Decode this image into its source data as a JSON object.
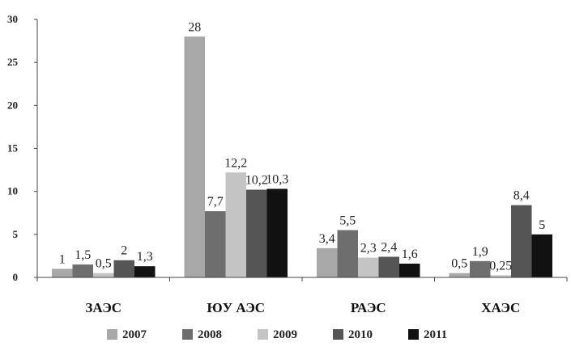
{
  "chart_data": {
    "type": "bar",
    "categories": [
      "ЗАЭС",
      "ЮУ АЭС",
      "РАЭС",
      "ХАЭС"
    ],
    "series": [
      {
        "name": "2007",
        "values": [
          1,
          28,
          3.4,
          0.5
        ],
        "labels": [
          "1",
          "28",
          "3,4",
          "0,5"
        ],
        "color": "#a8a8a8"
      },
      {
        "name": "2008",
        "values": [
          1.5,
          7.7,
          5.5,
          1.9
        ],
        "labels": [
          "1,5",
          "7,7",
          "5,5",
          "1,9"
        ],
        "color": "#6e6e6e"
      },
      {
        "name": "2009",
        "values": [
          0.5,
          12.2,
          2.3,
          0.25
        ],
        "labels": [
          "0,5",
          "12,2",
          "2,3",
          "0,25"
        ],
        "color": "#c4c4c4"
      },
      {
        "name": "2010",
        "values": [
          2,
          10.2,
          2.4,
          8.4
        ],
        "labels": [
          "2",
          "10,2",
          "2,4",
          "8,4"
        ],
        "color": "#555555"
      },
      {
        "name": "2011",
        "values": [
          1.3,
          10.3,
          1.6,
          5
        ],
        "labels": [
          "1,3",
          "10,3",
          "1,6",
          "5"
        ],
        "color": "#111111"
      }
    ],
    "ylim": [
      0,
      30
    ],
    "yticks": [
      0,
      5,
      10,
      15,
      20,
      25,
      30
    ],
    "grid": false,
    "legend_position": "bottom"
  }
}
